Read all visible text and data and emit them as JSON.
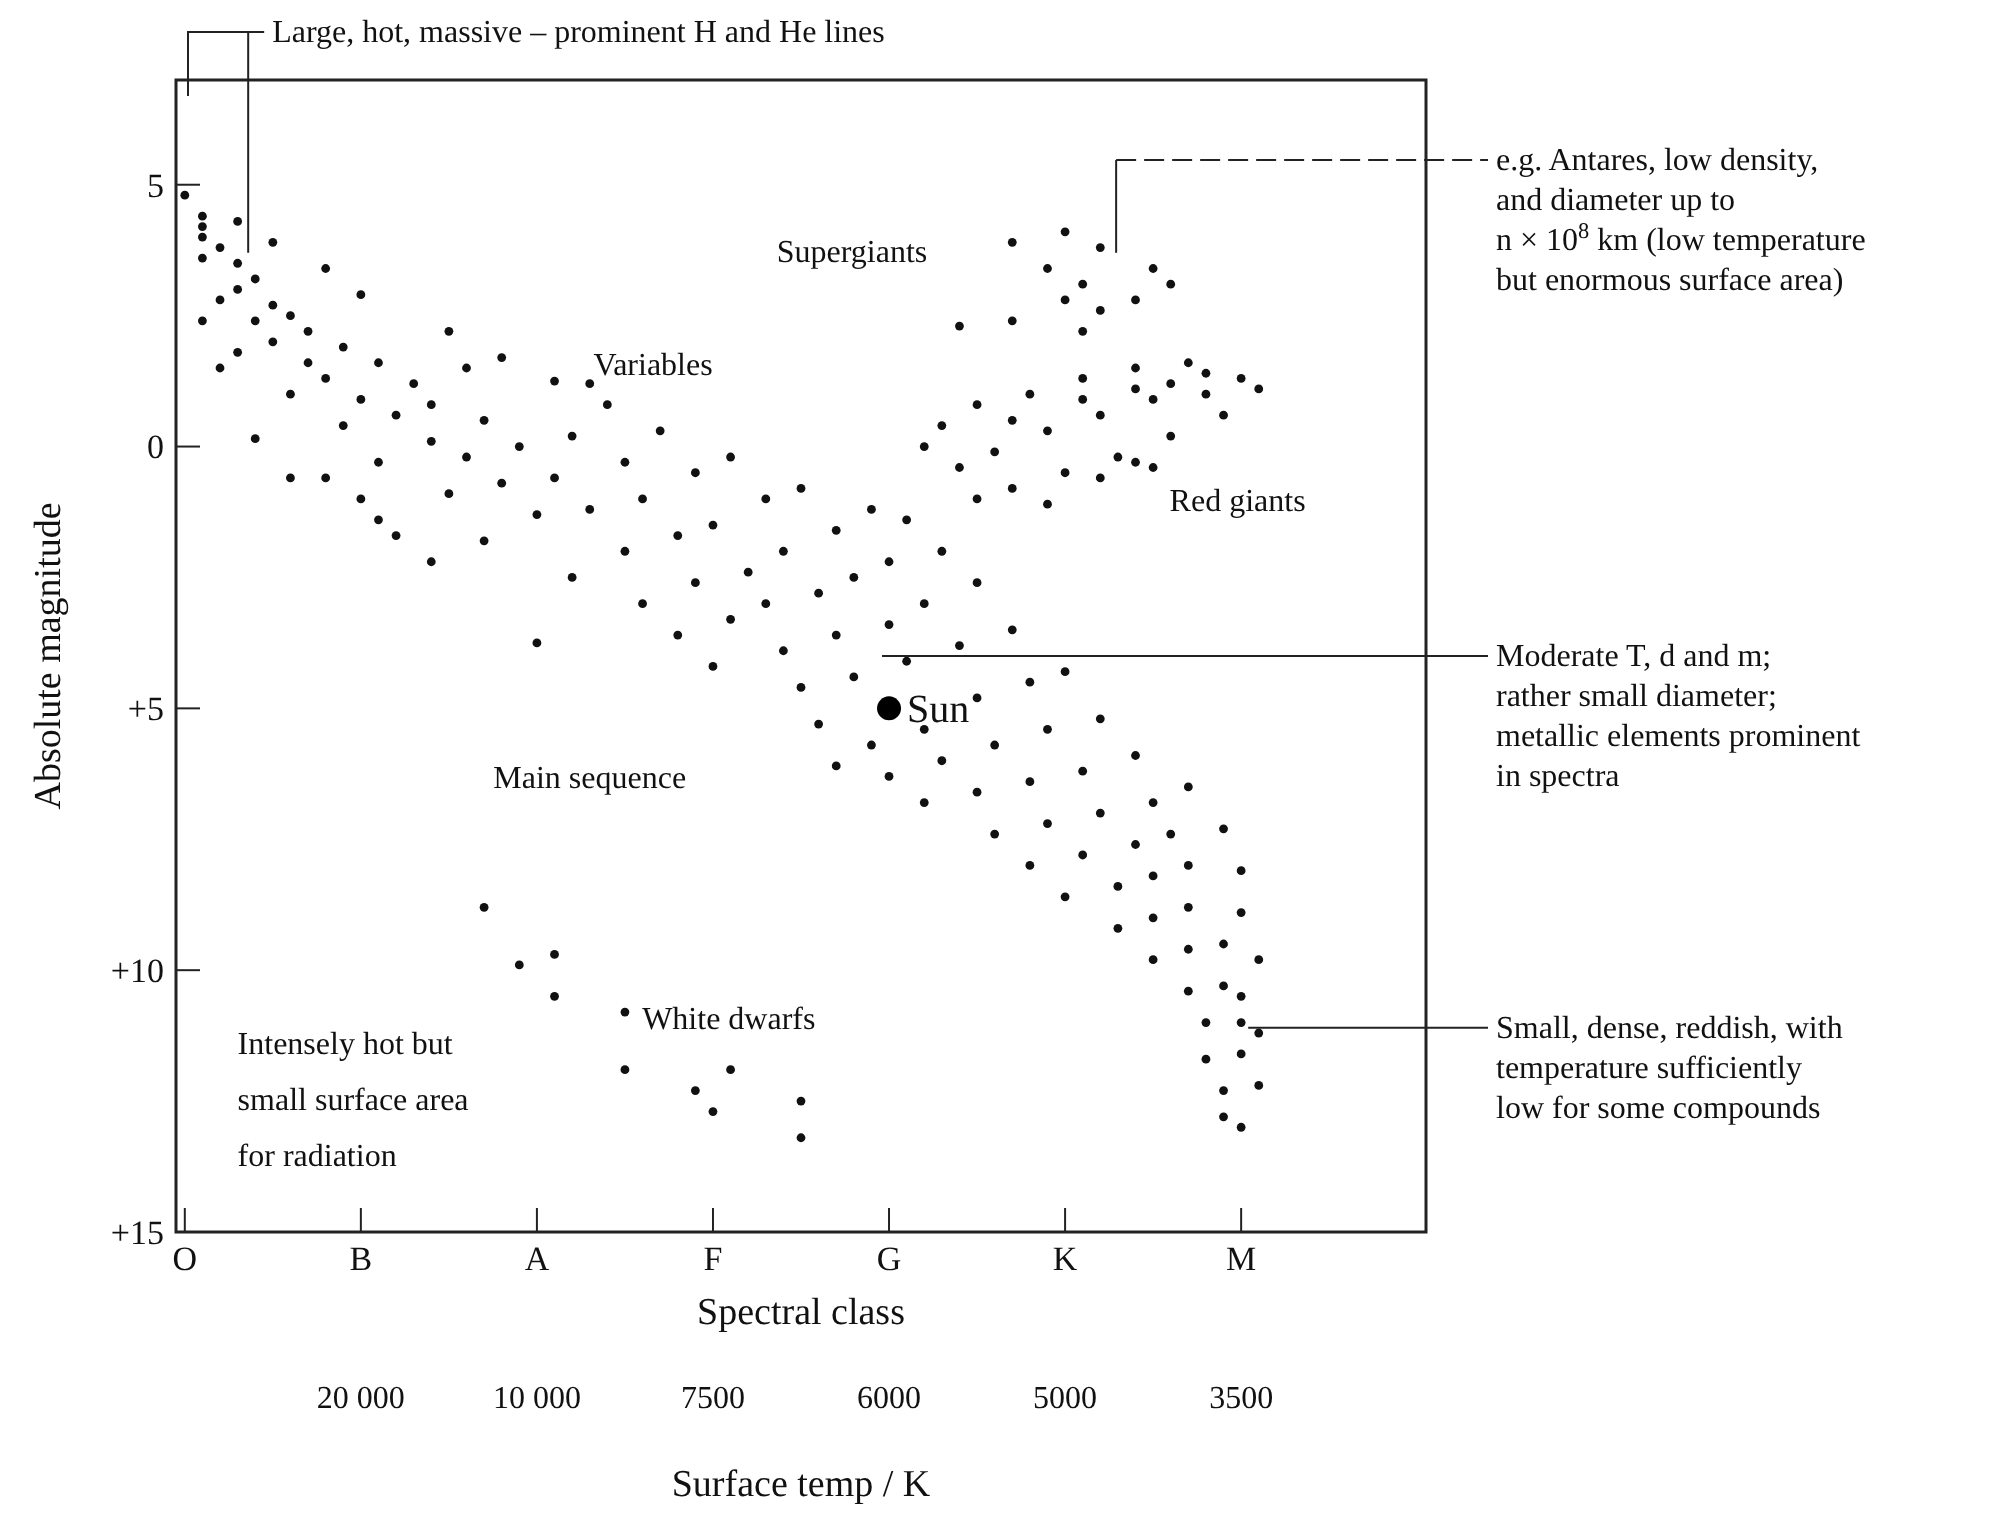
{
  "chart_data": {
    "type": "scatter",
    "xlabel": "Spectral class",
    "ylabel": "Absolute magnitude",
    "x2label": "Surface temp / K",
    "categories": [
      "O",
      null,
      null,
      null,
      null,
      null,
      null,
      null,
      null,
      null,
      "B",
      null,
      null,
      null,
      null,
      null,
      null,
      null,
      null,
      null,
      "A",
      null,
      null,
      null,
      null,
      null,
      null,
      null,
      null,
      null,
      "F",
      null,
      null,
      null,
      null,
      null,
      null,
      null,
      null,
      null,
      "G",
      null,
      null,
      null,
      null,
      null,
      null,
      null,
      null,
      null,
      "K",
      null,
      null,
      null,
      null,
      null,
      null,
      null,
      null,
      null,
      "M",
      null,
      null,
      null,
      null,
      null,
      null,
      null,
      null,
      null,
      null
    ],
    "ylim": [
      15,
      -7
    ],
    "yticks": [
      {
        "value": -5,
        "label": "5"
      },
      0,
      {
        "value": 5,
        "label": "+5"
      },
      {
        "value": 10,
        "label": "+10"
      },
      {
        "value": 15,
        "label": "+15"
      }
    ],
    "marker": "circle",
    "series": [
      {
        "color": "#111111",
        "values": [
          -4.8,
          -4.4,
          -3.8,
          -4.3,
          -3.2,
          -3.9,
          -2.5,
          -2.2,
          -3.4,
          -1.9,
          -2.9,
          -1.6,
          -0.6,
          -1.2,
          -0.8,
          -2.2,
          -1.5,
          -0.5,
          -1.7,
          0,
          1.3,
          -1.25,
          -0.2,
          -1.2,
          -0.8,
          0.3,
          1.0,
          -0.3,
          1.7,
          0.5,
          1.5,
          0.2,
          2.4,
          1.0,
          2.0,
          0.8,
          2.8,
          1.6,
          2.5,
          1.2,
          2.2,
          1.4,
          3.0,
          2.0,
          3.8,
          2.6,
          5.7,
          3.5,
          4.5,
          5.4,
          4.3,
          6.2,
          5.2,
          8.4,
          5.9,
          6.8,
          7.4,
          6.5,
          11.0,
          7.3,
          8.1,
          9.8,
          null,
          null,
          null,
          null,
          null,
          null,
          null,
          null,
          null
        ]
      },
      {
        "color": "#111111",
        "values": [
          null,
          -4.2,
          -2.8,
          -3.5,
          -2.4,
          -2.7,
          -1,
          -1.6,
          -1.3,
          -0.4,
          -0.9,
          0.3,
          1.7,
          null,
          -0.1,
          0.9,
          0.2,
          1.8,
          0.7,
          9.9,
          3.75,
          0.6,
          2.5,
          1.2,
          null,
          2.0,
          3.0,
          null,
          3.6,
          2.6,
          4.2,
          3.3,
          null,
          3.0,
          3.9,
          4.6,
          5.3,
          3.6,
          4.4,
          5.7,
          3.4,
          4.1,
          5.4,
          6.0,
          0.4,
          4.8,
          7.4,
          0.8,
          6.4,
          7.2,
          8.6,
          7.8,
          7.0,
          9.2,
          7.6,
          8.2,
          -0.2,
          8.0,
          11.7,
          9.5,
          8.9,
          11.2,
          null,
          null,
          null,
          null,
          null,
          null,
          null,
          null,
          null
        ]
      },
      {
        "color": "#111111",
        "values": [
          null,
          -4,
          -1.5,
          -3,
          -0.15,
          -2,
          0.6,
          null,
          0.6,
          null,
          1.0,
          1.4,
          null,
          null,
          2.2,
          null,
          null,
          8.8,
          null,
          null,
          null,
          9.7,
          null,
          null,
          null,
          10.8,
          null,
          null,
          null,
          12.3,
          12.7,
          11.9,
          null,
          null,
          null,
          12.5,
          null,
          6.1,
          null,
          null,
          6.3,
          null,
          6.8,
          -0.4,
          -2.3,
          6.6,
          0.1,
          -0.5,
          8.0,
          -0.3,
          0.5,
          -1.3,
          -0.6,
          0.2,
          -1.5,
          9.0,
          -1.2,
          8.8,
          -1.0,
          10.3,
          10.5,
          12.2,
          null,
          null,
          null,
          null,
          null,
          null,
          null,
          null,
          null
        ]
      },
      {
        "color": "#111111",
        "values": [
          null,
          -3.6,
          null,
          -1.8,
          null,
          null,
          null,
          null,
          null,
          null,
          null,
          null,
          null,
          null,
          null,
          null,
          null,
          null,
          null,
          null,
          null,
          10.5,
          null,
          null,
          null,
          11.9,
          null,
          null,
          null,
          null,
          null,
          null,
          null,
          null,
          null,
          13.2,
          null,
          null,
          null,
          null,
          null,
          null,
          0,
          null,
          null,
          -0.8,
          null,
          -3.9,
          -1.0,
          1.1,
          -4.1,
          -0.9,
          0.6,
          null,
          -1.1,
          9.8,
          -3.1,
          9.6,
          -1.4,
          12.3,
          11.0,
          -1.1,
          null,
          null,
          null,
          null,
          null,
          null,
          null,
          null,
          null
        ]
      },
      {
        "color": "#111111",
        "values": [
          null,
          -2.4,
          null,
          null,
          null,
          null,
          null,
          null,
          null,
          null,
          null,
          null,
          null,
          null,
          null,
          null,
          null,
          null,
          null,
          null,
          null,
          null,
          null,
          null,
          null,
          null,
          null,
          null,
          null,
          null,
          null,
          null,
          null,
          null,
          null,
          null,
          null,
          null,
          null,
          null,
          null,
          null,
          null,
          null,
          null,
          1.0,
          null,
          -2.4,
          null,
          -3.4,
          -2.8,
          -3.1,
          -3.8,
          null,
          0.3,
          -0.9,
          null,
          10.4,
          null,
          12.8,
          11.6,
          null,
          null,
          null,
          null,
          null,
          null,
          null,
          null,
          null,
          null
        ]
      },
      {
        "color": "#111111",
        "values": [
          null,
          null,
          null,
          null,
          null,
          null,
          null,
          null,
          null,
          null,
          null,
          null,
          null,
          null,
          null,
          null,
          null,
          null,
          null,
          null,
          null,
          null,
          null,
          null,
          null,
          null,
          null,
          null,
          null,
          null,
          null,
          null,
          null,
          null,
          null,
          null,
          null,
          null,
          null,
          null,
          null,
          null,
          null,
          null,
          null,
          null,
          null,
          null,
          null,
          null,
          null,
          -2.2,
          -2.6,
          null,
          -2.8,
          0.4,
          null,
          -1.6,
          null,
          -0.6,
          13.0,
          null,
          null,
          null,
          null,
          null,
          null,
          null,
          null,
          null,
          null
        ]
      },
      {
        "color": "#111111",
        "values": [
          null,
          null,
          null,
          null,
          null,
          null,
          null,
          null,
          null,
          null,
          null,
          null,
          null,
          null,
          null,
          null,
          null,
          null,
          null,
          null,
          null,
          null,
          null,
          null,
          null,
          null,
          null,
          null,
          null,
          null,
          null,
          null,
          null,
          null,
          null,
          null,
          null,
          null,
          null,
          null,
          null,
          null,
          null,
          null,
          null,
          null,
          null,
          null,
          null,
          null,
          null,
          null,
          null,
          null,
          null,
          -3.4,
          null,
          null,
          null,
          null,
          -1.3,
          null,
          null,
          null,
          null,
          null,
          null,
          null,
          null,
          null,
          null
        ]
      },
      {
        "name": "Sun",
        "color": "#000000",
        "values": [
          null,
          null,
          null,
          null,
          null,
          null,
          null,
          null,
          null,
          null,
          null,
          null,
          null,
          null,
          null,
          null,
          null,
          null,
          null,
          null,
          null,
          null,
          null,
          null,
          null,
          null,
          null,
          null,
          null,
          null,
          null,
          null,
          null,
          null,
          null,
          null,
          null,
          null,
          null,
          null,
          5,
          null,
          null,
          null,
          null,
          null,
          null,
          null,
          null,
          null,
          null,
          null,
          null,
          null,
          null,
          null,
          null,
          null,
          null,
          null,
          null,
          null,
          null,
          null,
          null,
          null,
          null,
          null,
          null,
          null,
          null
        ]
      }
    ],
    "annotations": [
      "Supergiants",
      "Variables",
      "Red giants",
      "Main sequence",
      "White dwarfs",
      "Intensely hot but\nsmall surface area\nfor radiation",
      "Large, hot, massive – prominent H and He lines",
      "e.g. Antares, low density,\nand diameter up to\nn × 10$^{8}$ km (low temperature\nbut enormous surface area)",
      "Moderate T, d and m;\nrather small diameter;\nmetallic elements prominent\nin spectra",
      {
        "text": "Small, dense, reddish, with\ntemperature sufficiently\nlow for some compounds",
        "x": "M",
        "y": 11.1
      },
      "20 000",
      "10 000",
      "7500",
      "6000",
      "5000",
      "3500"
    ]
  }
}
